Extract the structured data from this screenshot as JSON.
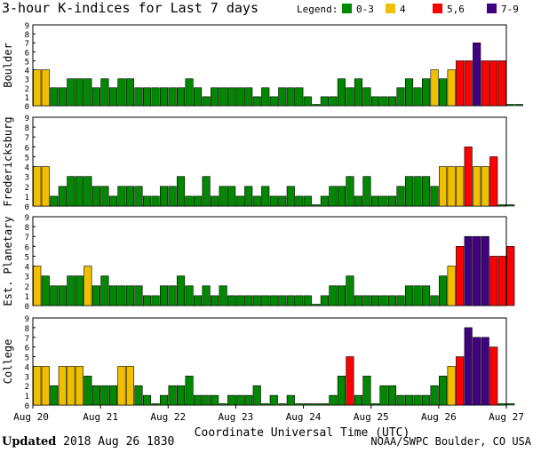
{
  "header": {
    "title": "3-hour K-indices for Last 7 days",
    "legend_title": "Legend:",
    "legend": [
      {
        "label": "0-3",
        "color": "#008800"
      },
      {
        "label": "4",
        "color": "#f0c000"
      },
      {
        "label": "5,6",
        "color": "#ff0000"
      },
      {
        "label": "7-9",
        "color": "#400080"
      }
    ]
  },
  "footer": {
    "updated_label": "Updated",
    "updated_value": "2018 Aug 26 1830",
    "credit": "NOAA/SWPC Boulder, CO USA"
  },
  "chart_data": {
    "type": "bar",
    "xlabel": "Coordinate Universal Time (UTC)",
    "x_ticks": [
      "Aug 20",
      "Aug 21",
      "Aug 22",
      "Aug 23",
      "Aug 24",
      "Aug 25",
      "Aug 26",
      "Aug 27"
    ],
    "y_ticks": [
      0,
      1,
      2,
      3,
      4,
      5,
      6,
      7,
      8,
      9
    ],
    "ylim": [
      0,
      9
    ],
    "bins_per_day": 8,
    "series": [
      {
        "name": "Boulder",
        "values": [
          4,
          4,
          2,
          2,
          3,
          3,
          3,
          2,
          3,
          2,
          3,
          3,
          2,
          2,
          2,
          2,
          2,
          2,
          3,
          2,
          1,
          2,
          2,
          2,
          2,
          2,
          1,
          2,
          1,
          2,
          2,
          2,
          1,
          0,
          1,
          1,
          3,
          2,
          3,
          2,
          1,
          1,
          1,
          2,
          3,
          2,
          3,
          4,
          3,
          4,
          5,
          5,
          7,
          5,
          5,
          5,
          0,
          0
        ]
      },
      {
        "name": "Fredericksburg",
        "values": [
          4,
          4,
          1,
          2,
          3,
          3,
          3,
          2,
          2,
          1,
          2,
          2,
          2,
          1,
          1,
          2,
          2,
          3,
          1,
          1,
          3,
          1,
          2,
          2,
          1,
          2,
          1,
          2,
          1,
          1,
          2,
          1,
          1,
          0,
          1,
          2,
          2,
          3,
          1,
          3,
          1,
          1,
          1,
          2,
          3,
          3,
          3,
          2,
          4,
          4,
          4,
          6,
          4,
          4,
          5,
          0,
          0
        ]
      },
      {
        "name": "Est. Planetary",
        "values": [
          4,
          3,
          2,
          2,
          3,
          3,
          4,
          2,
          3,
          2,
          2,
          2,
          2,
          1,
          1,
          2,
          2,
          3,
          2,
          1,
          2,
          1,
          2,
          1,
          1,
          1,
          1,
          1,
          1,
          1,
          1,
          1,
          1,
          0,
          1,
          2,
          2,
          3,
          1,
          1,
          1,
          1,
          1,
          1,
          2,
          2,
          2,
          1,
          3,
          4,
          6,
          7,
          7,
          7,
          5,
          5,
          6
        ]
      },
      {
        "name": "College",
        "values": [
          4,
          4,
          2,
          4,
          4,
          4,
          3,
          2,
          2,
          2,
          4,
          4,
          2,
          1,
          0,
          1,
          2,
          2,
          3,
          1,
          1,
          1,
          0,
          1,
          1,
          1,
          2,
          0,
          1,
          0,
          1,
          0,
          0,
          0,
          0,
          1,
          3,
          5,
          1,
          3,
          0,
          2,
          2,
          1,
          1,
          1,
          1,
          2,
          3,
          4,
          5,
          8,
          7,
          7,
          6,
          0,
          0
        ]
      }
    ]
  }
}
